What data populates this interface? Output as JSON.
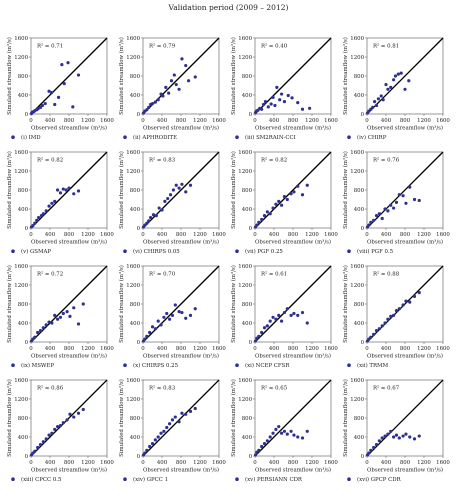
{
  "title": "Validation period (2009 – 2012)",
  "axis": {
    "ylabel": "Simulated streamflow (m³/s)",
    "xlabel": "Observed streamflow (m³/s)",
    "ticks": [
      "0",
      "400",
      "800",
      "1200",
      "1600"
    ]
  },
  "colors": {
    "points": "#2e3192",
    "line": "#000000",
    "axes": "#555555",
    "text": "#222222"
  },
  "chart_data": [
    {
      "type": "scatter",
      "r2": "R² = 0.71",
      "legend": "(i) IMD",
      "xlim": [
        0,
        1600
      ],
      "ylim": [
        0,
        1600
      ],
      "points": [
        [
          10,
          10
        ],
        [
          30,
          40
        ],
        [
          60,
          50
        ],
        [
          80,
          70
        ],
        [
          120,
          90
        ],
        [
          150,
          110
        ],
        [
          200,
          140
        ],
        [
          240,
          180
        ],
        [
          300,
          220
        ],
        [
          380,
          480
        ],
        [
          430,
          450
        ],
        [
          500,
          200
        ],
        [
          580,
          350
        ],
        [
          650,
          1040
        ],
        [
          700,
          640
        ],
        [
          780,
          1080
        ],
        [
          880,
          150
        ],
        [
          1000,
          820
        ]
      ]
    },
    {
      "type": "scatter",
      "r2": "R² = 0.79",
      "legend": "(ii) APHRODITE",
      "xlim": [
        0,
        1600
      ],
      "ylim": [
        0,
        1600
      ],
      "points": [
        [
          10,
          20
        ],
        [
          40,
          60
        ],
        [
          80,
          90
        ],
        [
          120,
          140
        ],
        [
          160,
          200
        ],
        [
          200,
          220
        ],
        [
          260,
          250
        ],
        [
          320,
          300
        ],
        [
          380,
          420
        ],
        [
          420,
          380
        ],
        [
          480,
          560
        ],
        [
          540,
          440
        ],
        [
          600,
          700
        ],
        [
          660,
          820
        ],
        [
          700,
          620
        ],
        [
          760,
          520
        ],
        [
          820,
          1160
        ],
        [
          900,
          1020
        ],
        [
          960,
          700
        ],
        [
          1100,
          780
        ]
      ]
    },
    {
      "type": "scatter",
      "r2": "R² = 0.40",
      "legend": "(iii) SM2RAIN-CCI",
      "xlim": [
        0,
        1600
      ],
      "ylim": [
        0,
        1600
      ],
      "points": [
        [
          10,
          30
        ],
        [
          30,
          60
        ],
        [
          60,
          80
        ],
        [
          100,
          120
        ],
        [
          140,
          100
        ],
        [
          180,
          200
        ],
        [
          220,
          260
        ],
        [
          280,
          150
        ],
        [
          340,
          210
        ],
        [
          380,
          350
        ],
        [
          420,
          180
        ],
        [
          460,
          560
        ],
        [
          520,
          300
        ],
        [
          560,
          420
        ],
        [
          620,
          260
        ],
        [
          700,
          390
        ],
        [
          780,
          340
        ],
        [
          900,
          240
        ],
        [
          1000,
          100
        ],
        [
          1150,
          120
        ]
      ]
    },
    {
      "type": "scatter",
      "r2": "R² = 0.81",
      "legend": "(iv) CHIRP",
      "xlim": [
        0,
        1600
      ],
      "ylim": [
        0,
        1600
      ],
      "points": [
        [
          10,
          20
        ],
        [
          40,
          60
        ],
        [
          80,
          100
        ],
        [
          120,
          140
        ],
        [
          160,
          260
        ],
        [
          200,
          180
        ],
        [
          240,
          320
        ],
        [
          300,
          380
        ],
        [
          340,
          300
        ],
        [
          400,
          620
        ],
        [
          440,
          520
        ],
        [
          500,
          560
        ],
        [
          560,
          720
        ],
        [
          600,
          800
        ],
        [
          660,
          840
        ],
        [
          720,
          860
        ],
        [
          800,
          520
        ],
        [
          880,
          700
        ]
      ]
    },
    {
      "type": "scatter",
      "r2": "R² = 0.82",
      "legend": "(v) GSMAP",
      "xlim": [
        0,
        1600
      ],
      "ylim": [
        0,
        1600
      ],
      "points": [
        [
          10,
          20
        ],
        [
          40,
          50
        ],
        [
          80,
          100
        ],
        [
          120,
          160
        ],
        [
          160,
          220
        ],
        [
          220,
          260
        ],
        [
          260,
          300
        ],
        [
          320,
          360
        ],
        [
          380,
          460
        ],
        [
          440,
          520
        ],
        [
          500,
          560
        ],
        [
          560,
          800
        ],
        [
          620,
          740
        ],
        [
          680,
          820
        ],
        [
          740,
          800
        ],
        [
          800,
          840
        ],
        [
          900,
          720
        ],
        [
          1000,
          780
        ]
      ]
    },
    {
      "type": "scatter",
      "r2": "R² = 0.83",
      "legend": "(vi) CHIRPS 0.05",
      "xlim": [
        0,
        1600
      ],
      "ylim": [
        0,
        1600
      ],
      "points": [
        [
          10,
          20
        ],
        [
          40,
          60
        ],
        [
          80,
          100
        ],
        [
          120,
          150
        ],
        [
          160,
          220
        ],
        [
          220,
          280
        ],
        [
          280,
          260
        ],
        [
          340,
          420
        ],
        [
          400,
          380
        ],
        [
          460,
          560
        ],
        [
          520,
          620
        ],
        [
          580,
          700
        ],
        [
          640,
          800
        ],
        [
          700,
          900
        ],
        [
          760,
          840
        ],
        [
          820,
          920
        ],
        [
          900,
          760
        ],
        [
          1000,
          900
        ]
      ]
    },
    {
      "type": "scatter",
      "r2": "R² = 0.82",
      "legend": "(vii) PGF 0.25",
      "xlim": [
        0,
        1600
      ],
      "ylim": [
        0,
        1600
      ],
      "points": [
        [
          10,
          20
        ],
        [
          40,
          60
        ],
        [
          80,
          120
        ],
        [
          140,
          180
        ],
        [
          200,
          260
        ],
        [
          260,
          340
        ],
        [
          320,
          300
        ],
        [
          380,
          420
        ],
        [
          440,
          500
        ],
        [
          500,
          560
        ],
        [
          560,
          480
        ],
        [
          620,
          660
        ],
        [
          680,
          600
        ],
        [
          760,
          720
        ],
        [
          820,
          760
        ],
        [
          900,
          880
        ],
        [
          1000,
          700
        ],
        [
          1100,
          900
        ]
      ]
    },
    {
      "type": "scatter",
      "r2": "R² = 0.76",
      "legend": "(viii) PGF 0.5",
      "xlim": [
        0,
        1600
      ],
      "ylim": [
        0,
        1600
      ],
      "points": [
        [
          10,
          20
        ],
        [
          40,
          60
        ],
        [
          80,
          120
        ],
        [
          140,
          160
        ],
        [
          200,
          260
        ],
        [
          260,
          300
        ],
        [
          320,
          200
        ],
        [
          380,
          400
        ],
        [
          440,
          360
        ],
        [
          500,
          480
        ],
        [
          560,
          420
        ],
        [
          620,
          540
        ],
        [
          680,
          700
        ],
        [
          760,
          680
        ],
        [
          820,
          520
        ],
        [
          900,
          860
        ],
        [
          1000,
          600
        ],
        [
          1100,
          580
        ]
      ]
    },
    {
      "type": "scatter",
      "r2": "R² = 0.72",
      "legend": "(ix) MSWEP",
      "xlim": [
        0,
        1600
      ],
      "ylim": [
        0,
        1600
      ],
      "points": [
        [
          10,
          20
        ],
        [
          40,
          60
        ],
        [
          80,
          100
        ],
        [
          140,
          200
        ],
        [
          200,
          240
        ],
        [
          260,
          300
        ],
        [
          320,
          360
        ],
        [
          380,
          420
        ],
        [
          440,
          400
        ],
        [
          500,
          560
        ],
        [
          560,
          480
        ],
        [
          620,
          520
        ],
        [
          680,
          600
        ],
        [
          760,
          640
        ],
        [
          820,
          540
        ],
        [
          900,
          720
        ],
        [
          1000,
          380
        ],
        [
          1100,
          800
        ]
      ]
    },
    {
      "type": "scatter",
      "r2": "R² = 0.70",
      "legend": "(x) CHIRPS 0.25",
      "xlim": [
        0,
        1600
      ],
      "ylim": [
        0,
        1600
      ],
      "points": [
        [
          10,
          20
        ],
        [
          40,
          60
        ],
        [
          80,
          120
        ],
        [
          140,
          200
        ],
        [
          200,
          320
        ],
        [
          260,
          280
        ],
        [
          320,
          440
        ],
        [
          380,
          360
        ],
        [
          440,
          520
        ],
        [
          500,
          600
        ],
        [
          560,
          480
        ],
        [
          620,
          560
        ],
        [
          680,
          780
        ],
        [
          760,
          640
        ],
        [
          820,
          620
        ],
        [
          900,
          500
        ],
        [
          1000,
          560
        ],
        [
          1100,
          700
        ]
      ]
    },
    {
      "type": "scatter",
      "r2": "R² = 0.61",
      "legend": "(xi) NCEP CFSR",
      "xlim": [
        0,
        1600
      ],
      "ylim": [
        0,
        1600
      ],
      "points": [
        [
          10,
          20
        ],
        [
          40,
          80
        ],
        [
          80,
          120
        ],
        [
          140,
          200
        ],
        [
          200,
          300
        ],
        [
          260,
          340
        ],
        [
          320,
          440
        ],
        [
          380,
          520
        ],
        [
          440,
          480
        ],
        [
          500,
          560
        ],
        [
          560,
          440
        ],
        [
          620,
          620
        ],
        [
          680,
          700
        ],
        [
          760,
          560
        ],
        [
          820,
          600
        ],
        [
          900,
          560
        ],
        [
          1000,
          620
        ],
        [
          1100,
          400
        ]
      ]
    },
    {
      "type": "scatter",
      "r2": "R² = 0.88",
      "legend": "(xii) TRMM",
      "xlim": [
        0,
        1600
      ],
      "ylim": [
        0,
        1600
      ],
      "points": [
        [
          10,
          20
        ],
        [
          40,
          60
        ],
        [
          80,
          100
        ],
        [
          140,
          160
        ],
        [
          200,
          240
        ],
        [
          260,
          280
        ],
        [
          320,
          340
        ],
        [
          380,
          400
        ],
        [
          440,
          480
        ],
        [
          500,
          540
        ],
        [
          560,
          560
        ],
        [
          620,
          660
        ],
        [
          680,
          700
        ],
        [
          760,
          780
        ],
        [
          820,
          860
        ],
        [
          900,
          840
        ],
        [
          1000,
          960
        ],
        [
          1100,
          1040
        ]
      ]
    },
    {
      "type": "scatter",
      "r2": "R² = 0.86",
      "legend": "(xiii) CPCC 0.5",
      "xlim": [
        0,
        1600
      ],
      "ylim": [
        0,
        1600
      ],
      "points": [
        [
          10,
          20
        ],
        [
          40,
          60
        ],
        [
          80,
          100
        ],
        [
          140,
          180
        ],
        [
          200,
          240
        ],
        [
          260,
          300
        ],
        [
          320,
          360
        ],
        [
          380,
          440
        ],
        [
          440,
          480
        ],
        [
          500,
          560
        ],
        [
          560,
          620
        ],
        [
          620,
          640
        ],
        [
          680,
          700
        ],
        [
          760,
          760
        ],
        [
          820,
          880
        ],
        [
          900,
          820
        ],
        [
          1000,
          900
        ],
        [
          1100,
          980
        ]
      ]
    },
    {
      "type": "scatter",
      "r2": "R² = 0.83",
      "legend": "(xiv) GPCC 1",
      "xlim": [
        0,
        1600
      ],
      "ylim": [
        0,
        1600
      ],
      "points": [
        [
          10,
          20
        ],
        [
          40,
          60
        ],
        [
          80,
          120
        ],
        [
          140,
          200
        ],
        [
          200,
          260
        ],
        [
          260,
          340
        ],
        [
          320,
          400
        ],
        [
          380,
          480
        ],
        [
          440,
          520
        ],
        [
          500,
          600
        ],
        [
          560,
          680
        ],
        [
          620,
          760
        ],
        [
          680,
          820
        ],
        [
          760,
          720
        ],
        [
          820,
          900
        ],
        [
          900,
          880
        ],
        [
          1000,
          940
        ],
        [
          1100,
          1000
        ]
      ]
    },
    {
      "type": "scatter",
      "r2": "R² = 0.65",
      "legend": "(xv) PERSIANN CDR",
      "xlim": [
        0,
        1600
      ],
      "ylim": [
        0,
        1600
      ],
      "points": [
        [
          10,
          20
        ],
        [
          40,
          80
        ],
        [
          80,
          120
        ],
        [
          140,
          200
        ],
        [
          200,
          260
        ],
        [
          260,
          320
        ],
        [
          320,
          400
        ],
        [
          380,
          480
        ],
        [
          440,
          560
        ],
        [
          500,
          620
        ],
        [
          560,
          480
        ],
        [
          620,
          520
        ],
        [
          680,
          460
        ],
        [
          760,
          520
        ],
        [
          820,
          440
        ],
        [
          900,
          400
        ],
        [
          1000,
          380
        ],
        [
          1100,
          520
        ]
      ]
    },
    {
      "type": "scatter",
      "r2": "R² = 0.67",
      "legend": "(xvi) GPCP CDR",
      "xlim": [
        0,
        1600
      ],
      "ylim": [
        0,
        1600
      ],
      "points": [
        [
          10,
          20
        ],
        [
          40,
          60
        ],
        [
          80,
          120
        ],
        [
          140,
          180
        ],
        [
          200,
          240
        ],
        [
          260,
          320
        ],
        [
          320,
          380
        ],
        [
          380,
          420
        ],
        [
          440,
          460
        ],
        [
          500,
          520
        ],
        [
          560,
          400
        ],
        [
          620,
          440
        ],
        [
          680,
          380
        ],
        [
          760,
          420
        ],
        [
          820,
          460
        ],
        [
          900,
          400
        ],
        [
          1000,
          360
        ],
        [
          1100,
          420
        ]
      ]
    }
  ]
}
